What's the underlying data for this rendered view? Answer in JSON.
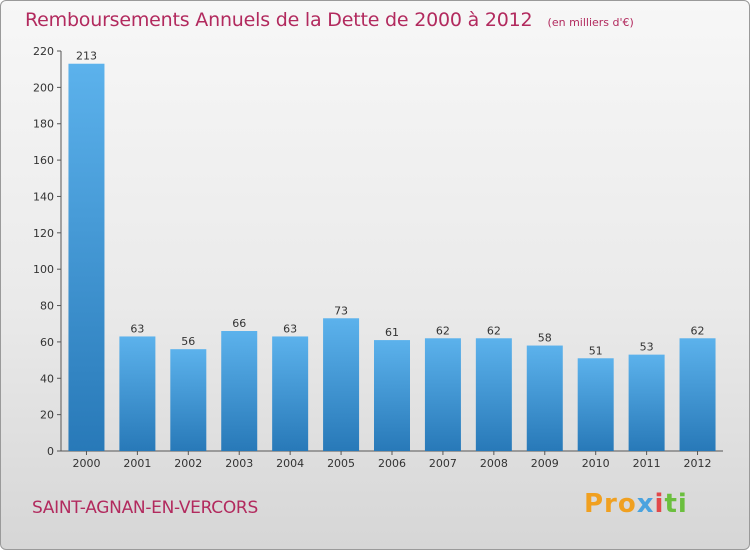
{
  "title": "Remboursements Annuels de la Dette de 2000 à 2012",
  "unit": "(en milliers d'€)",
  "commune": "SAINT-AGNAN-EN-VERCORS",
  "logo": {
    "parts": [
      "Pro",
      "x",
      "i",
      "ti"
    ],
    "colors": [
      "#f0a020",
      "#4aa3df",
      "#e2484a",
      "#6bbf3e"
    ]
  },
  "colors": {
    "bar_top": "#5cb2ec",
    "bar_bottom": "#2879b8",
    "title": "#b22a5e"
  },
  "chart_data": {
    "type": "bar",
    "categories": [
      "2000",
      "2001",
      "2002",
      "2003",
      "2004",
      "2005",
      "2006",
      "2007",
      "2008",
      "2009",
      "2010",
      "2011",
      "2012"
    ],
    "values": [
      213,
      63,
      56,
      66,
      63,
      73,
      61,
      62,
      62,
      58,
      51,
      53,
      62
    ],
    "yticks": [
      "0",
      "20",
      "40",
      "60",
      "80",
      "100",
      "120",
      "140",
      "160",
      "180",
      "200",
      "220"
    ],
    "ylim": [
      0,
      220
    ],
    "grid": false,
    "legend": "none"
  }
}
